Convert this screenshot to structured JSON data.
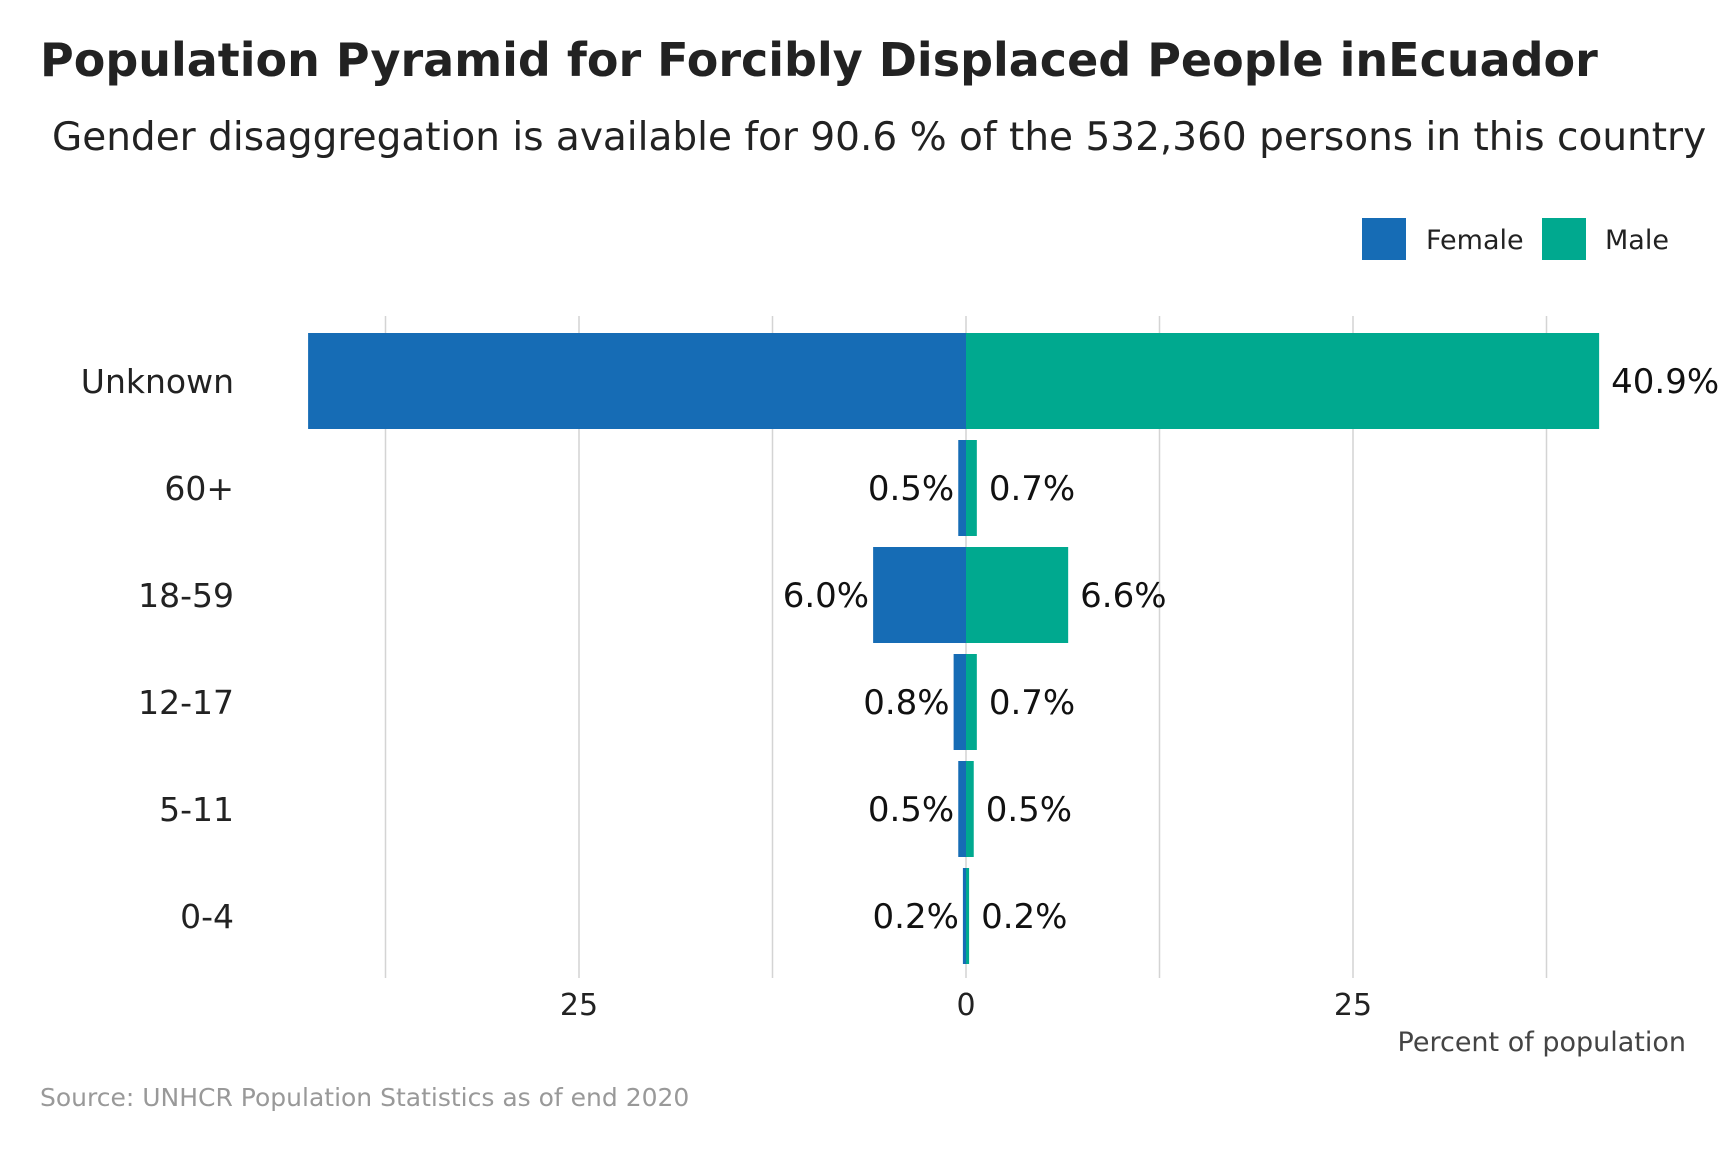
{
  "chart_data": {
    "type": "bar",
    "orientation": "horizontal-pyramid",
    "title": "Population Pyramid for Forcibly Displaced People inEcuador",
    "subtitle": "Gender disaggregation is available for 90.6 % of the 532,360 persons in this country",
    "xlabel": "Percent of population",
    "caption": "Source: UNHCR Population Statistics as of end 2020",
    "categories": [
      "0-4",
      "5-11",
      "12-17",
      "18-59",
      "60+",
      "Unknown"
    ],
    "series": [
      {
        "name": "Female",
        "color": "#166cb5",
        "values": [
          0.2,
          0.5,
          0.8,
          6.0,
          0.5,
          42.5
        ],
        "labels": [
          "0.2%",
          "0.5%",
          "0.8%",
          "6.0%",
          "0.5%",
          ""
        ]
      },
      {
        "name": "Male",
        "color": "#00a98f",
        "values": [
          0.2,
          0.5,
          0.7,
          6.6,
          0.7,
          40.9
        ],
        "labels": [
          "0.2%",
          "0.5%",
          "0.7%",
          "6.6%",
          "0.7%",
          "40.9%"
        ]
      }
    ],
    "xlim": [
      -43,
      43
    ],
    "xticks": [
      -25,
      0,
      25
    ],
    "xtick_labels": [
      "25",
      "0",
      "25"
    ],
    "minor_grid": [
      -37.5,
      -12.5,
      12.5,
      37.5
    ],
    "grid": true,
    "legend_position": "top-right"
  }
}
